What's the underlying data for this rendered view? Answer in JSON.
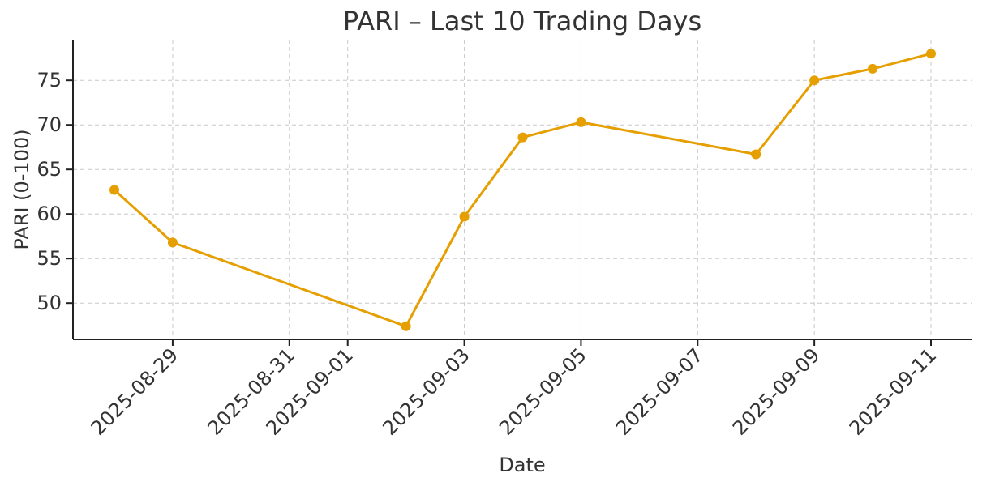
{
  "chart_data": {
    "type": "line",
    "title": "PARI – Last 10 Trading Days",
    "xlabel": "Date",
    "ylabel": "PARI (0-100)",
    "x_type": "date",
    "xlim": [
      "2025-08-27",
      "2025-09-11"
    ],
    "ylim": [
      45.8,
      79.5
    ],
    "x_ticks": [
      "2025-08-29",
      "2025-08-31",
      "2025-09-01",
      "2025-09-03",
      "2025-09-05",
      "2025-09-07",
      "2025-09-09",
      "2025-09-11"
    ],
    "y_ticks": [
      50,
      55,
      60,
      65,
      70,
      75
    ],
    "grid": true,
    "series": [
      {
        "color": "#E69F00",
        "marker": "circle",
        "x": [
          "2025-08-28",
          "2025-08-29",
          "2025-09-02",
          "2025-09-03",
          "2025-09-04",
          "2025-09-05",
          "2025-09-08",
          "2025-09-09",
          "2025-09-10",
          "2025-09-11"
        ],
        "y": [
          62.7,
          56.8,
          47.4,
          59.7,
          68.6,
          70.3,
          66.7,
          75.0,
          76.3,
          78.0
        ]
      }
    ]
  }
}
